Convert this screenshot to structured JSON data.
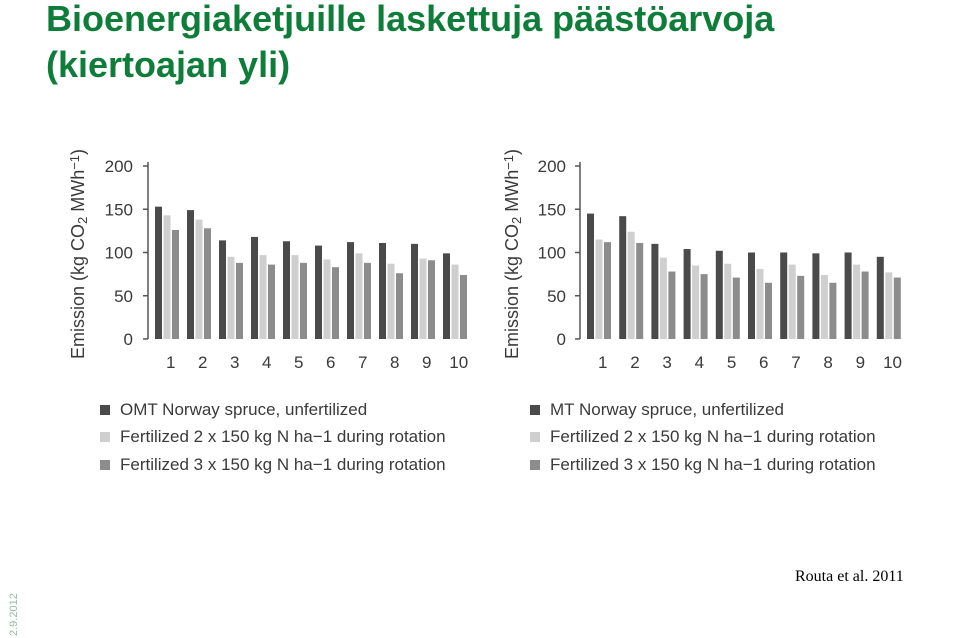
{
  "slide": {
    "title": "Bioenergiaketjuille laskettuja päästöarvoja (kiertoajan yli)",
    "source": "Routa et al. 2011",
    "date": "2.9.2012"
  },
  "colors": {
    "title": "#0f7d3a",
    "series": [
      "#4a4a4a",
      "#cfcfcf",
      "#8c8c8c"
    ]
  },
  "chart_data": [
    {
      "type": "bar",
      "categories": [
        "1",
        "2",
        "3",
        "4",
        "5",
        "6",
        "7",
        "8",
        "9",
        "10"
      ],
      "ylabel": "Emission (kg CO2 MWh−1)",
      "ylim": [
        0,
        200
      ],
      "yticks": [
        0,
        50,
        100,
        150,
        200
      ],
      "grid": false,
      "legend_position": "bottom",
      "series": [
        {
          "name": "OMT Norway spruce, unfertilized",
          "values": [
            153,
            149,
            114,
            118,
            113,
            108,
            112,
            111,
            110,
            99
          ]
        },
        {
          "name": "Fertilized 2 x 150 kg N ha−1 during rotation",
          "values": [
            143,
            138,
            95,
            97,
            97,
            92,
            99,
            87,
            93,
            86
          ]
        },
        {
          "name": "Fertilized 3 x 150 kg N ha−1 during rotation",
          "values": [
            126,
            128,
            88,
            86,
            88,
            83,
            88,
            76,
            91,
            74
          ]
        }
      ]
    },
    {
      "type": "bar",
      "categories": [
        "1",
        "2",
        "3",
        "4",
        "5",
        "6",
        "7",
        "8",
        "9",
        "10"
      ],
      "ylabel": "Emission (kg CO2 MWh−1)",
      "ylim": [
        0,
        200
      ],
      "yticks": [
        0,
        50,
        100,
        150,
        200
      ],
      "grid": false,
      "legend_position": "bottom",
      "series": [
        {
          "name": "MT Norway spruce, unfertilized",
          "values": [
            145,
            142,
            110,
            104,
            102,
            100,
            100,
            99,
            100,
            95
          ]
        },
        {
          "name": "Fertilized 2 x 150 kg N ha−1 during rotation",
          "values": [
            115,
            124,
            94,
            85,
            87,
            81,
            86,
            74,
            86,
            77
          ]
        },
        {
          "name": "Fertilized 3 x 150 kg N ha−1 during rotation",
          "values": [
            112,
            111,
            78,
            75,
            71,
            65,
            73,
            65,
            78,
            71
          ]
        }
      ]
    }
  ]
}
